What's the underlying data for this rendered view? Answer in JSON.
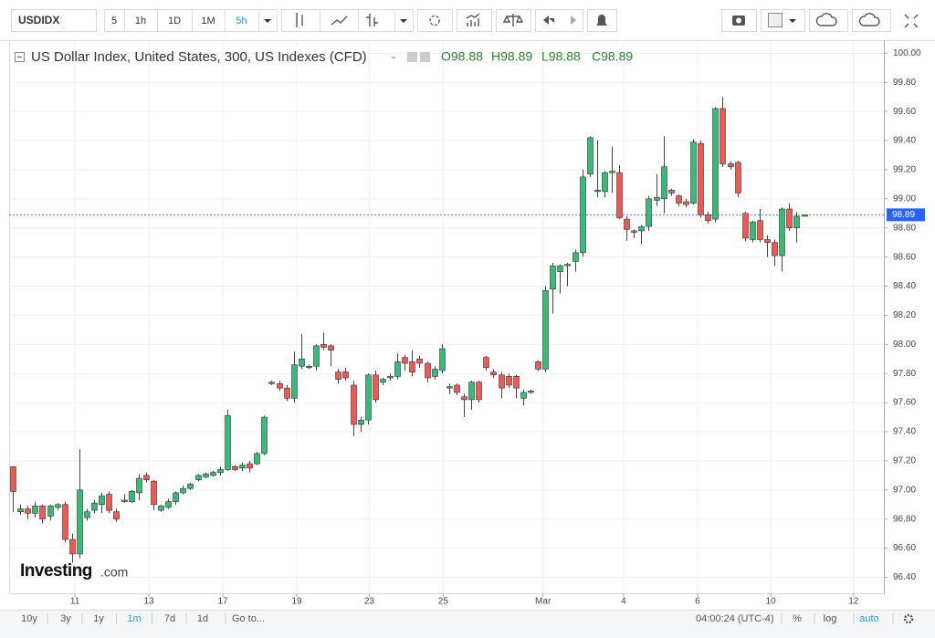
{
  "toolbar": {
    "symbol": "USDIDX",
    "intervals": [
      "5",
      "1h",
      "1D",
      "1M",
      "5h"
    ],
    "active_interval": 4
  },
  "chart_data": {
    "type": "candlestick",
    "title": "US Dollar Index, United States, 300, US Indexes (CFD)",
    "ohlc_labels": [
      "O98.88",
      "H98.89",
      "L98.88",
      "C98.89"
    ],
    "up_color": "#3cb878",
    "down_color": "#ec5a55",
    "open": [
      97.16,
      96.85,
      96.87,
      96.84,
      96.89,
      96.82,
      96.88,
      96.9,
      96.66,
      96.56,
      96.81,
      96.86,
      96.9,
      96.97,
      96.85,
      96.92,
      96.92,
      96.98,
      97.1,
      97.06,
      96.86,
      96.88,
      96.92,
      96.98,
      97.01,
      97.07,
      97.09,
      97.1,
      97.12,
      97.14,
      97.16,
      97.15,
      97.18,
      97.18,
      97.25,
      97.74,
      97.73,
      97.7,
      97.63,
      97.85,
      97.84,
      97.85,
      98.0,
      97.99,
      97.81,
      97.81,
      97.72,
      97.45,
      97.48,
      97.79,
      97.74,
      97.77,
      97.78,
      97.91,
      97.88,
      97.9,
      97.87,
      97.78,
      97.82,
      97.7,
      97.72,
      97.64,
      97.62,
      97.74,
      97.91,
      97.81,
      97.79,
      97.78,
      97.78,
      97.63,
      97.67,
      97.88,
      97.83,
      98.38,
      98.5,
      98.54,
      98.57,
      98.63,
      99.17,
      99.05,
      99.05,
      99.18,
      99.18,
      98.86,
      98.78,
      98.78,
      98.81,
      98.99,
      99.0,
      99.06,
      99.02,
      98.98,
      98.97,
      99.38,
      98.89,
      98.86,
      99.62,
      99.24,
      99.25,
      98.9,
      98.72,
      98.85,
      98.72,
      98.7,
      98.61,
      98.93,
      98.8,
      98.88
    ],
    "high": [
      97.16,
      96.9,
      96.89,
      96.92,
      96.9,
      96.9,
      96.91,
      96.92,
      96.7,
      97.28,
      96.87,
      96.93,
      96.98,
      96.99,
      96.87,
      96.97,
      97.0,
      97.11,
      97.12,
      97.07,
      96.9,
      96.94,
      96.99,
      97.03,
      97.05,
      97.11,
      97.12,
      97.13,
      97.16,
      97.55,
      97.17,
      97.19,
      97.2,
      97.26,
      97.51,
      97.75,
      97.75,
      97.72,
      97.95,
      98.07,
      97.86,
      98.0,
      98.08,
      98.0,
      97.83,
      97.84,
      97.75,
      97.5,
      97.8,
      97.82,
      97.77,
      97.8,
      97.94,
      97.93,
      97.96,
      97.92,
      97.88,
      97.85,
      98.0,
      97.73,
      97.73,
      97.66,
      97.75,
      97.75,
      97.92,
      97.83,
      97.81,
      97.8,
      97.79,
      97.69,
      97.69,
      97.89,
      98.4,
      98.56,
      98.55,
      98.56,
      98.65,
      99.2,
      99.43,
      99.4,
      99.19,
      99.36,
      99.23,
      98.88,
      98.79,
      98.82,
      99.02,
      99.17,
      99.43,
      99.07,
      99.03,
      99.0,
      99.41,
      99.4,
      98.91,
      99.63,
      99.7,
      99.26,
      99.26,
      98.91,
      98.85,
      98.93,
      98.75,
      98.72,
      98.94,
      98.97,
      98.91,
      98.89
    ],
    "low": [
      96.85,
      96.83,
      96.8,
      96.81,
      96.77,
      96.79,
      96.86,
      96.64,
      96.5,
      96.53,
      96.79,
      96.84,
      96.84,
      96.84,
      96.78,
      96.91,
      96.91,
      96.93,
      97.05,
      96.86,
      96.85,
      96.87,
      96.9,
      96.97,
      97.0,
      97.06,
      97.08,
      97.09,
      97.1,
      97.13,
      97.13,
      97.13,
      97.12,
      97.17,
      97.24,
      97.72,
      97.68,
      97.61,
      97.6,
      97.83,
      97.83,
      97.82,
      97.96,
      97.85,
      97.73,
      97.75,
      97.37,
      97.4,
      97.45,
      97.6,
      97.72,
      97.75,
      97.76,
      97.82,
      97.78,
      97.84,
      97.74,
      97.76,
      97.8,
      97.66,
      97.65,
      97.5,
      97.55,
      97.6,
      97.82,
      97.77,
      97.63,
      97.7,
      97.63,
      97.58,
      97.66,
      97.82,
      97.81,
      98.21,
      98.35,
      98.4,
      98.5,
      98.6,
      99.15,
      99.01,
      99.01,
      99.04,
      98.86,
      98.71,
      98.73,
      98.69,
      98.78,
      98.95,
      98.9,
      99.02,
      98.95,
      98.94,
      98.96,
      98.87,
      98.83,
      98.84,
      99.22,
      99.2,
      99.01,
      98.71,
      98.7,
      98.7,
      98.6,
      98.54,
      98.5,
      98.78,
      98.7,
      98.88
    ],
    "close": [
      96.99,
      96.87,
      96.84,
      96.89,
      96.8,
      96.89,
      96.9,
      96.66,
      96.56,
      97.0,
      96.85,
      96.91,
      96.96,
      96.86,
      96.8,
      96.93,
      96.99,
      97.08,
      97.07,
      96.9,
      96.89,
      96.92,
      96.98,
      97.01,
      97.04,
      97.1,
      97.11,
      97.12,
      97.14,
      97.51,
      97.14,
      97.17,
      97.15,
      97.25,
      97.5,
      97.73,
      97.7,
      97.63,
      97.86,
      97.9,
      97.85,
      97.99,
      97.98,
      97.96,
      97.76,
      97.77,
      97.45,
      97.48,
      97.79,
      97.62,
      97.76,
      97.78,
      97.88,
      97.87,
      97.81,
      97.87,
      97.77,
      97.83,
      97.97,
      97.71,
      97.67,
      97.62,
      97.74,
      97.62,
      97.84,
      97.79,
      97.7,
      97.72,
      97.7,
      97.67,
      97.68,
      97.83,
      98.37,
      98.54,
      98.54,
      98.55,
      98.63,
      99.15,
      99.42,
      99.06,
      99.18,
      99.19,
      98.87,
      98.79,
      98.77,
      98.81,
      99.0,
      99.01,
      99.22,
      99.04,
      98.97,
      98.96,
      99.39,
      98.89,
      98.85,
      99.62,
      99.24,
      99.22,
      99.04,
      98.73,
      98.84,
      98.72,
      98.7,
      98.61,
      98.93,
      98.8,
      98.88,
      98.89
    ],
    "last_price": 98.89,
    "last_price_color": "#2962ff",
    "xlim": [
      -0.5,
      117.8
    ],
    "xticks": [
      {
        "value": 8.4,
        "label": "11"
      },
      {
        "value": 18.4,
        "label": "13"
      },
      {
        "value": 28.4,
        "label": "17"
      },
      {
        "value": 38.4,
        "label": "19"
      },
      {
        "value": 48.2,
        "label": "23"
      },
      {
        "value": 58.2,
        "label": "25"
      },
      {
        "value": 71.7,
        "label": "Mar"
      },
      {
        "value": 82.6,
        "label": "4"
      },
      {
        "value": 92.6,
        "label": "6"
      },
      {
        "value": 102.5,
        "label": "10"
      },
      {
        "value": 113.7,
        "label": "12"
      }
    ],
    "ylim": [
      96.29,
      100.09
    ],
    "yticks": [
      {
        "value": 96.4,
        "label": "96.40"
      },
      {
        "value": 96.6,
        "label": "96.60"
      },
      {
        "value": 96.8,
        "label": "96.80"
      },
      {
        "value": 97.0,
        "label": "97.00"
      },
      {
        "value": 97.2,
        "label": "97.20"
      },
      {
        "value": 97.4,
        "label": "97.40"
      },
      {
        "value": 97.6,
        "label": "97.60"
      },
      {
        "value": 97.8,
        "label": "97.80"
      },
      {
        "value": 98.0,
        "label": "98.00"
      },
      {
        "value": 98.2,
        "label": "98.20"
      },
      {
        "value": 98.4,
        "label": "98.40"
      },
      {
        "value": 98.6,
        "label": "98.60"
      },
      {
        "value": 98.8,
        "label": "98.80"
      },
      {
        "value": 99.0,
        "label": "99.00"
      },
      {
        "value": 99.2,
        "label": "99.20"
      },
      {
        "value": 99.4,
        "label": "99.40"
      },
      {
        "value": 99.6,
        "label": "99.60"
      },
      {
        "value": 99.8,
        "label": "99.80"
      },
      {
        "value": 100.0,
        "label": "100.00"
      }
    ],
    "grid": true,
    "watermark": [
      "Investing",
      ".com"
    ]
  },
  "footer": {
    "ranges": [
      "10y",
      "3y",
      "1y",
      "1m",
      "7d",
      "1d",
      "Go to..."
    ],
    "active_range": 3,
    "time": "04:00:24 (UTC-4)",
    "options": [
      "%",
      "log",
      "auto"
    ],
    "active_option": 2
  }
}
